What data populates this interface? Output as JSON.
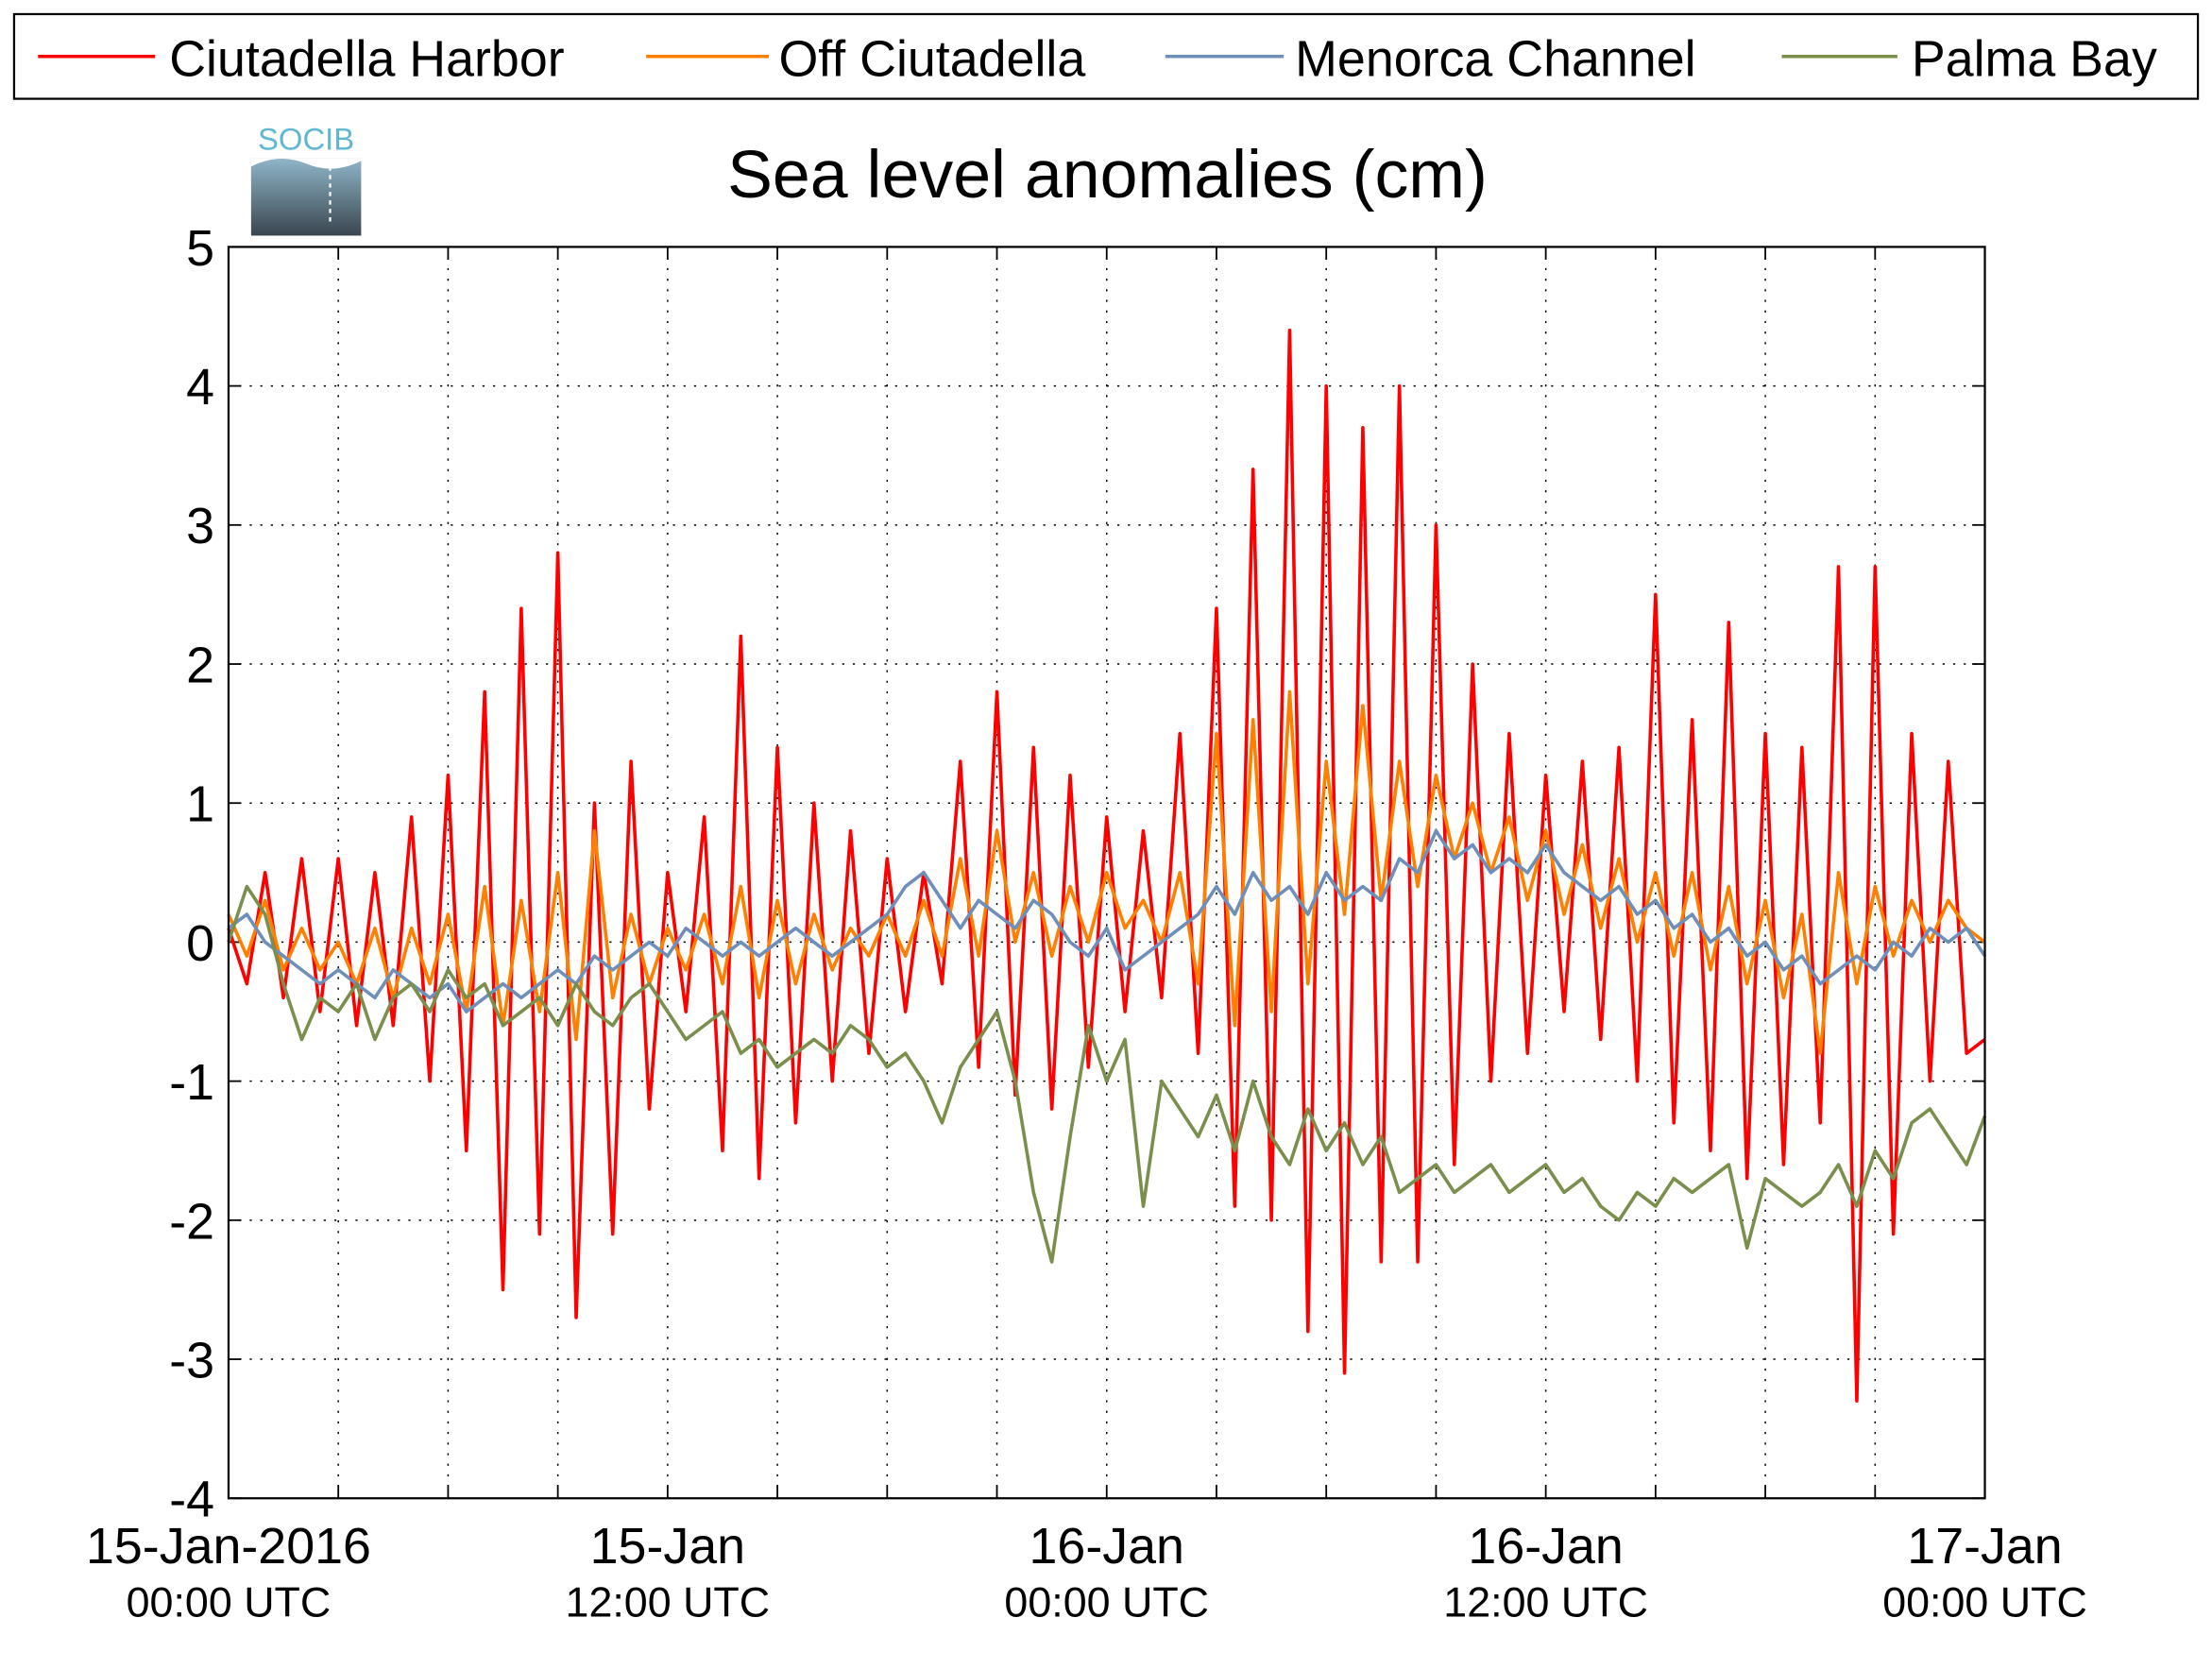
{
  "chart_data": {
    "type": "line",
    "title": "Sea level anomalies (cm)",
    "logo": "SOCIB",
    "legend": "top",
    "grid": true,
    "xlim": [
      "2016-01-15T00:00",
      "2016-01-17T00:00"
    ],
    "ylim": [
      -4,
      5
    ],
    "yticks": [
      -4,
      -3,
      -2,
      -1,
      0,
      1,
      2,
      3,
      4,
      5
    ],
    "xticks": [
      {
        "value": "2016-01-15T00:00",
        "label": [
          "15-Jan-2016",
          "00:00 UTC"
        ]
      },
      "2016-01-15T03:00",
      "2016-01-15T06:00",
      "2016-01-15T09:00",
      {
        "value": "2016-01-15T12:00",
        "label": [
          "15-Jan",
          "12:00 UTC"
        ]
      },
      "2016-01-15T15:00",
      "2016-01-15T18:00",
      "2016-01-15T21:00",
      {
        "value": "2016-01-16T00:00",
        "label": [
          "16-Jan",
          "00:00 UTC"
        ]
      },
      "2016-01-16T03:00",
      "2016-01-16T06:00",
      "2016-01-16T09:00",
      {
        "value": "2016-01-16T12:00",
        "label": [
          "16-Jan",
          "12:00 UTC"
        ]
      },
      "2016-01-16T15:00",
      "2016-01-16T18:00",
      "2016-01-16T21:00",
      {
        "value": "2016-01-17T00:00",
        "label": [
          "17-Jan",
          "00:00 UTC"
        ]
      }
    ],
    "x": [
      "2016-01-15T00:00",
      "2016-01-15T00:30",
      "2016-01-15T01:00",
      "2016-01-15T01:30",
      "2016-01-15T02:00",
      "2016-01-15T02:30",
      "2016-01-15T03:00",
      "2016-01-15T03:30",
      "2016-01-15T04:00",
      "2016-01-15T04:30",
      "2016-01-15T05:00",
      "2016-01-15T05:30",
      "2016-01-15T06:00",
      "2016-01-15T06:30",
      "2016-01-15T07:00",
      "2016-01-15T07:30",
      "2016-01-15T08:00",
      "2016-01-15T08:30",
      "2016-01-15T09:00",
      "2016-01-15T09:30",
      "2016-01-15T10:00",
      "2016-01-15T10:30",
      "2016-01-15T11:00",
      "2016-01-15T11:30",
      "2016-01-15T12:00",
      "2016-01-15T12:30",
      "2016-01-15T13:00",
      "2016-01-15T13:30",
      "2016-01-15T14:00",
      "2016-01-15T14:30",
      "2016-01-15T15:00",
      "2016-01-15T15:30",
      "2016-01-15T16:00",
      "2016-01-15T16:30",
      "2016-01-15T17:00",
      "2016-01-15T17:30",
      "2016-01-15T18:00",
      "2016-01-15T18:30",
      "2016-01-15T19:00",
      "2016-01-15T19:30",
      "2016-01-15T20:00",
      "2016-01-15T20:30",
      "2016-01-15T21:00",
      "2016-01-15T21:30",
      "2016-01-15T22:00",
      "2016-01-15T22:30",
      "2016-01-15T23:00",
      "2016-01-15T23:30",
      "2016-01-16T00:00",
      "2016-01-16T00:30",
      "2016-01-16T01:00",
      "2016-01-16T01:30",
      "2016-01-16T02:00",
      "2016-01-16T02:30",
      "2016-01-16T03:00",
      "2016-01-16T03:30",
      "2016-01-16T04:00",
      "2016-01-16T04:30",
      "2016-01-16T05:00",
      "2016-01-16T05:30",
      "2016-01-16T06:00",
      "2016-01-16T06:30",
      "2016-01-16T07:00",
      "2016-01-16T07:30",
      "2016-01-16T08:00",
      "2016-01-16T08:30",
      "2016-01-16T09:00",
      "2016-01-16T09:30",
      "2016-01-16T10:00",
      "2016-01-16T10:30",
      "2016-01-16T11:00",
      "2016-01-16T11:30",
      "2016-01-16T12:00",
      "2016-01-16T12:30",
      "2016-01-16T13:00",
      "2016-01-16T13:30",
      "2016-01-16T14:00",
      "2016-01-16T14:30",
      "2016-01-16T15:00",
      "2016-01-16T15:30",
      "2016-01-16T16:00",
      "2016-01-16T16:30",
      "2016-01-16T17:00",
      "2016-01-16T17:30",
      "2016-01-16T18:00",
      "2016-01-16T18:30",
      "2016-01-16T19:00",
      "2016-01-16T19:30",
      "2016-01-16T20:00",
      "2016-01-16T20:30",
      "2016-01-16T21:00",
      "2016-01-16T21:30",
      "2016-01-16T22:00",
      "2016-01-16T22:30",
      "2016-01-16T23:00",
      "2016-01-16T23:30",
      "2016-01-17T00:00"
    ],
    "series": [
      {
        "name": "Ciutadella Harbor",
        "color": "#ff0000",
        "values": [
          0.1,
          -0.3,
          0.5,
          -0.4,
          0.6,
          -0.5,
          0.6,
          -0.6,
          0.5,
          -0.6,
          0.9,
          -1.0,
          1.2,
          -1.5,
          1.8,
          -2.5,
          2.4,
          -2.1,
          2.8,
          -2.7,
          1.0,
          -2.1,
          1.3,
          -1.2,
          0.5,
          -0.5,
          0.9,
          -1.5,
          2.2,
          -1.7,
          1.4,
          -1.3,
          1.0,
          -1.0,
          0.8,
          -0.8,
          0.6,
          -0.5,
          0.5,
          -0.3,
          1.3,
          -0.9,
          1.8,
          -1.1,
          1.4,
          -1.2,
          1.2,
          -0.9,
          0.9,
          -0.5,
          0.8,
          -0.4,
          1.5,
          -0.8,
          2.4,
          -1.9,
          3.4,
          -2.0,
          4.4,
          -2.8,
          4.0,
          -3.1,
          3.7,
          -2.3,
          4.0,
          -2.3,
          3.0,
          -1.6,
          2.0,
          -1.0,
          1.5,
          -0.8,
          1.2,
          -0.5,
          1.3,
          -0.7,
          1.4,
          -1.0,
          2.5,
          -1.3,
          1.6,
          -1.5,
          2.3,
          -1.7,
          1.5,
          -1.6,
          1.4,
          -1.3,
          2.7,
          -3.3,
          2.7,
          -2.1,
          1.5,
          -1.0,
          1.3,
          -0.8,
          -0.7
        ]
      },
      {
        "name": "Off Ciutadella",
        "color": "#ff8000",
        "values": [
          0.2,
          -0.1,
          0.3,
          -0.2,
          0.1,
          -0.2,
          0.0,
          -0.3,
          0.1,
          -0.4,
          0.1,
          -0.3,
          0.2,
          -0.5,
          0.4,
          -0.6,
          0.3,
          -0.5,
          0.5,
          -0.7,
          0.8,
          -0.4,
          0.2,
          -0.3,
          0.1,
          -0.2,
          0.2,
          -0.3,
          0.4,
          -0.4,
          0.3,
          -0.3,
          0.2,
          -0.2,
          0.1,
          -0.1,
          0.2,
          -0.1,
          0.3,
          -0.1,
          0.6,
          -0.1,
          0.8,
          0.0,
          0.5,
          -0.1,
          0.4,
          0.0,
          0.5,
          0.1,
          0.3,
          0.0,
          0.5,
          -0.3,
          1.5,
          -0.6,
          1.6,
          -0.5,
          1.8,
          -0.3,
          1.3,
          0.2,
          1.7,
          0.3,
          1.3,
          0.4,
          1.2,
          0.6,
          1.0,
          0.5,
          0.9,
          0.3,
          0.8,
          0.2,
          0.7,
          0.1,
          0.6,
          0.0,
          0.5,
          -0.1,
          0.5,
          -0.2,
          0.4,
          -0.3,
          0.3,
          -0.4,
          0.2,
          -0.8,
          0.5,
          -0.3,
          0.4,
          -0.1,
          0.3,
          0.0,
          0.3,
          0.1,
          0.0
        ]
      },
      {
        "name": "Menorca Channel",
        "color": "#6f8fbb",
        "values": [
          0.1,
          0.2,
          0.0,
          -0.1,
          -0.2,
          -0.3,
          -0.2,
          -0.3,
          -0.4,
          -0.2,
          -0.3,
          -0.4,
          -0.3,
          -0.5,
          -0.4,
          -0.3,
          -0.4,
          -0.3,
          -0.2,
          -0.3,
          -0.1,
          -0.2,
          -0.1,
          0.0,
          -0.1,
          0.1,
          0.0,
          -0.1,
          0.0,
          -0.1,
          0.0,
          0.1,
          0.0,
          -0.1,
          0.0,
          0.1,
          0.2,
          0.4,
          0.5,
          0.3,
          0.1,
          0.3,
          0.2,
          0.1,
          0.3,
          0.2,
          0.0,
          -0.1,
          0.1,
          -0.2,
          -0.1,
          0.0,
          0.1,
          0.2,
          0.4,
          0.2,
          0.5,
          0.3,
          0.4,
          0.2,
          0.5,
          0.3,
          0.4,
          0.3,
          0.6,
          0.5,
          0.8,
          0.6,
          0.7,
          0.5,
          0.6,
          0.5,
          0.7,
          0.5,
          0.4,
          0.3,
          0.4,
          0.2,
          0.3,
          0.1,
          0.2,
          0.0,
          0.1,
          -0.1,
          0.0,
          -0.2,
          -0.1,
          -0.3,
          -0.2,
          -0.1,
          -0.2,
          0.0,
          -0.1,
          0.1,
          0.0,
          0.1,
          -0.1
        ]
      },
      {
        "name": "Palma Bay",
        "color": "#7a8f4c",
        "values": [
          0.0,
          0.4,
          0.2,
          -0.3,
          -0.7,
          -0.4,
          -0.5,
          -0.3,
          -0.7,
          -0.4,
          -0.3,
          -0.5,
          -0.2,
          -0.4,
          -0.3,
          -0.6,
          -0.5,
          -0.4,
          -0.6,
          -0.3,
          -0.5,
          -0.6,
          -0.4,
          -0.3,
          -0.5,
          -0.7,
          -0.6,
          -0.5,
          -0.8,
          -0.7,
          -0.9,
          -0.8,
          -0.7,
          -0.8,
          -0.6,
          -0.7,
          -0.9,
          -0.8,
          -1.0,
          -1.3,
          -0.9,
          -0.7,
          -0.5,
          -1.0,
          -1.8,
          -2.3,
          -1.4,
          -0.6,
          -1.0,
          -0.7,
          -1.9,
          -1.0,
          -1.2,
          -1.4,
          -1.1,
          -1.5,
          -1.0,
          -1.4,
          -1.6,
          -1.2,
          -1.5,
          -1.3,
          -1.6,
          -1.4,
          -1.8,
          -1.7,
          -1.6,
          -1.8,
          -1.7,
          -1.6,
          -1.8,
          -1.7,
          -1.6,
          -1.8,
          -1.7,
          -1.9,
          -2.0,
          -1.8,
          -1.9,
          -1.7,
          -1.8,
          -1.7,
          -1.6,
          -2.2,
          -1.7,
          -1.8,
          -1.9,
          -1.8,
          -1.6,
          -1.9,
          -1.5,
          -1.7,
          -1.3,
          -1.2,
          -1.4,
          -1.6,
          -1.25
        ]
      }
    ]
  }
}
